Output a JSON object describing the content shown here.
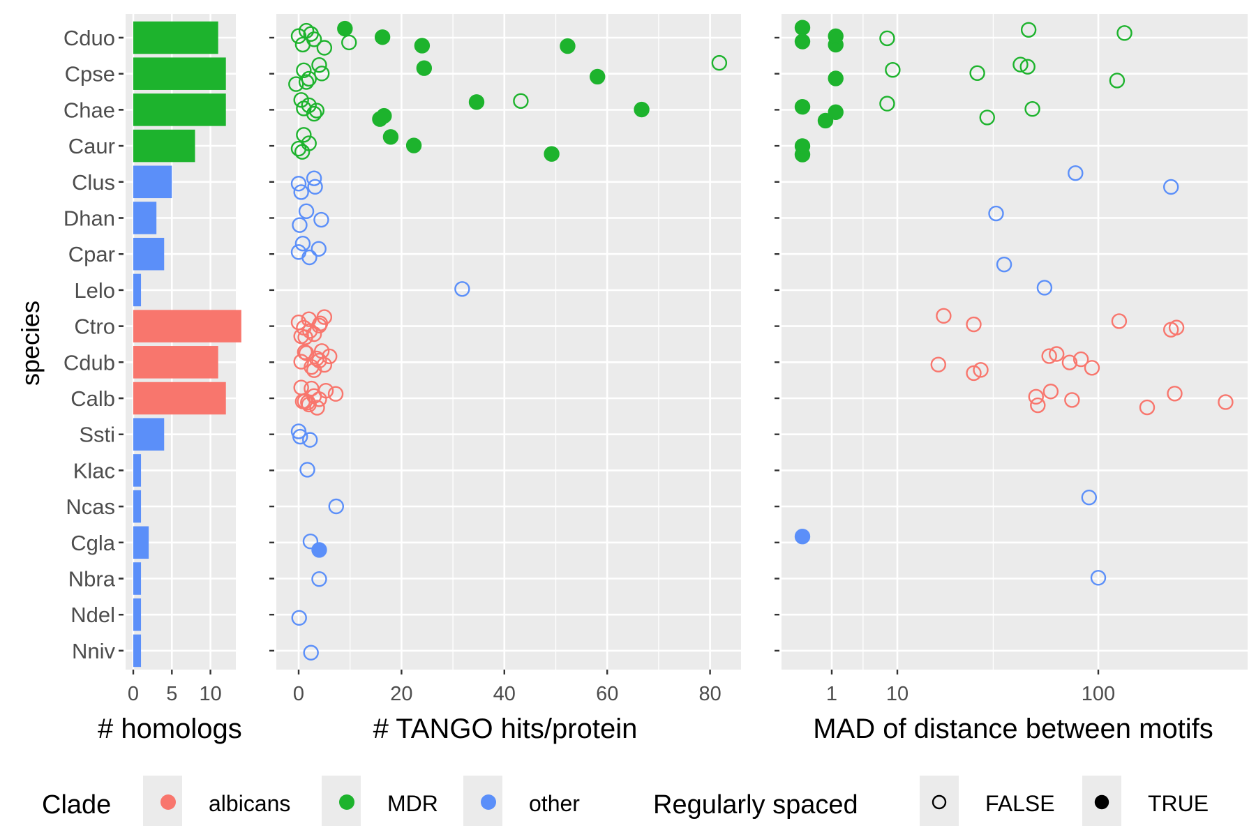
{
  "chart_data": [
    {
      "type": "bar",
      "orientation": "horizontal",
      "ylabel": "species",
      "xlabel": "# homologs",
      "xlim": [
        0,
        14
      ],
      "xticks": [
        0,
        5,
        10
      ],
      "categories": [
        "Cduo",
        "Cpse",
        "Chae",
        "Caur",
        "Clus",
        "Dhan",
        "Cpar",
        "Lelo",
        "Ctro",
        "Cdub",
        "Calb",
        "Ssti",
        "Klac",
        "Ncas",
        "Cgla",
        "Nbra",
        "Ndel",
        "Nniv"
      ],
      "clade": [
        "MDR",
        "MDR",
        "MDR",
        "MDR",
        "other",
        "other",
        "other",
        "other",
        "albicans",
        "albicans",
        "albicans",
        "other",
        "other",
        "other",
        "other",
        "other",
        "other",
        "other"
      ],
      "values": [
        11,
        12,
        12,
        8,
        5,
        3,
        4,
        1,
        14,
        11,
        12,
        4,
        1,
        1,
        2,
        1,
        1,
        1
      ],
      "grid": true
    },
    {
      "type": "scatter",
      "xlabel": "# TANGO hits/protein",
      "xlim": [
        -4,
        86
      ],
      "xticks": [
        0,
        20,
        40,
        60,
        80
      ],
      "points": {
        "Cduo": [
          [
            0,
            false
          ],
          [
            0.8,
            false
          ],
          [
            1.5,
            false
          ],
          [
            3,
            false
          ],
          [
            5,
            false
          ],
          [
            2.4,
            false
          ],
          [
            9.8,
            false
          ],
          [
            9,
            true
          ],
          [
            16.3,
            true
          ],
          [
            24,
            true
          ],
          [
            52.3,
            true
          ]
        ],
        "Cpse": [
          [
            -0.5,
            false
          ],
          [
            1,
            false
          ],
          [
            2,
            false
          ],
          [
            4,
            false
          ],
          [
            4.5,
            false
          ],
          [
            1.5,
            false
          ],
          [
            24.4,
            true
          ],
          [
            58.1,
            true
          ],
          [
            81.8,
            false
          ]
        ],
        "Chae": [
          [
            0.5,
            false
          ],
          [
            1,
            false
          ],
          [
            2,
            false
          ],
          [
            3,
            false
          ],
          [
            3.5,
            false
          ],
          [
            15.8,
            true
          ],
          [
            16.6,
            true
          ],
          [
            34.6,
            true
          ],
          [
            43.2,
            false
          ],
          [
            66.7,
            true
          ]
        ],
        "Caur": [
          [
            0,
            false
          ],
          [
            1,
            false
          ],
          [
            2,
            false
          ],
          [
            0.7,
            false
          ],
          [
            17.9,
            true
          ],
          [
            22.4,
            true
          ],
          [
            49.2,
            true
          ]
        ],
        "Clus": [
          [
            0,
            false
          ],
          [
            0.5,
            false
          ],
          [
            3,
            false
          ],
          [
            3.2,
            false
          ]
        ],
        "Dhan": [
          [
            0.2,
            false
          ],
          [
            1.5,
            false
          ],
          [
            4.4,
            false
          ]
        ],
        "Cpar": [
          [
            0,
            false
          ],
          [
            0.8,
            false
          ],
          [
            2.1,
            false
          ],
          [
            3.9,
            false
          ]
        ],
        "Lelo": [
          [
            31.8,
            false
          ]
        ],
        "Ctro": [
          [
            0,
            false
          ],
          [
            0.5,
            false
          ],
          [
            1,
            false
          ],
          [
            2,
            false
          ],
          [
            3,
            false
          ],
          [
            4,
            false
          ],
          [
            5,
            false
          ],
          [
            2.2,
            false
          ],
          [
            4.2,
            false
          ],
          [
            1.3,
            false
          ]
        ],
        "Cdub": [
          [
            0.5,
            false
          ],
          [
            1.5,
            false
          ],
          [
            2.5,
            false
          ],
          [
            3.5,
            false
          ],
          [
            4.5,
            false
          ],
          [
            5,
            false
          ],
          [
            6,
            false
          ],
          [
            3,
            false
          ],
          [
            4,
            false
          ],
          [
            1.2,
            false
          ]
        ],
        "Calb": [
          [
            0.5,
            false
          ],
          [
            1.2,
            false
          ],
          [
            2,
            false
          ],
          [
            3,
            false
          ],
          [
            4,
            false
          ],
          [
            5.3,
            false
          ],
          [
            7.2,
            false
          ],
          [
            3.6,
            false
          ],
          [
            2.5,
            false
          ],
          [
            1.8,
            false
          ],
          [
            0.8,
            false
          ]
        ],
        "Ssti": [
          [
            0,
            false
          ],
          [
            2.2,
            false
          ],
          [
            0.3,
            false
          ]
        ],
        "Klac": [
          [
            1.7,
            false
          ]
        ],
        "Ncas": [
          [
            7.3,
            false
          ]
        ],
        "Cgla": [
          [
            2.3,
            false
          ],
          [
            4,
            true
          ]
        ],
        "Nbra": [
          [
            4,
            false
          ]
        ],
        "Ndel": [
          [
            0.1,
            false
          ]
        ],
        "Nniv": [
          [
            2.4,
            false
          ]
        ]
      },
      "grid": true
    },
    {
      "type": "scatter",
      "xlabel": "MAD of distance between motifs",
      "xscale": "log",
      "xlim": [
        0.17,
        450
      ],
      "xticks": [
        1,
        10,
        100
      ],
      "points": {
        "Cduo": [
          [
            0.3,
            true
          ],
          [
            0.3,
            true
          ],
          [
            1.15,
            true
          ],
          [
            1.15,
            true
          ],
          [
            7,
            false
          ],
          [
            45,
            false
          ],
          [
            135,
            false
          ]
        ],
        "Cpse": [
          [
            1.15,
            true
          ],
          [
            8.5,
            false
          ],
          [
            25,
            false
          ],
          [
            41,
            false
          ],
          [
            44.5,
            false
          ],
          [
            124,
            false
          ]
        ],
        "Chae": [
          [
            0.3,
            true
          ],
          [
            0.85,
            true
          ],
          [
            1.15,
            true
          ],
          [
            7,
            false
          ],
          [
            28,
            false
          ],
          [
            47,
            false
          ]
        ],
        "Caur": [
          [
            0.3,
            true
          ],
          [
            0.3,
            true
          ]
        ],
        "Clus": [
          [
            77,
            false
          ],
          [
            230,
            false
          ]
        ],
        "Dhan": [
          [
            31,
            false
          ]
        ],
        "Cpar": [
          [
            34,
            false
          ]
        ],
        "Lelo": [
          [
            54,
            false
          ]
        ],
        "Ctro": [
          [
            17,
            false
          ],
          [
            24,
            false
          ],
          [
            127,
            false
          ],
          [
            230,
            false
          ],
          [
            245,
            false
          ]
        ],
        "Cdub": [
          [
            16,
            false
          ],
          [
            24,
            false
          ],
          [
            26,
            false
          ],
          [
            57,
            false
          ],
          [
            62,
            false
          ],
          [
            72,
            false
          ],
          [
            82,
            false
          ],
          [
            93,
            false
          ]
        ],
        "Calb": [
          [
            49,
            false
          ],
          [
            50,
            false
          ],
          [
            58,
            false
          ],
          [
            74,
            false
          ],
          [
            175,
            false
          ],
          [
            240,
            false
          ],
          [
            430,
            false
          ]
        ],
        "Ssti": [],
        "Klac": [],
        "Ncas": [
          [
            90,
            false
          ]
        ],
        "Cgla": [
          [
            0.3,
            true
          ]
        ],
        "Nbra": [
          [
            100,
            false
          ]
        ],
        "Ndel": [],
        "Nniv": []
      },
      "grid": true
    }
  ],
  "legend": {
    "clade_title": "Clade",
    "clade_items": [
      {
        "label": "albicans",
        "color": "#F8766D"
      },
      {
        "label": "MDR",
        "color": "#1DB32D"
      },
      {
        "label": "other",
        "color": "#5B8FF9"
      }
    ],
    "spacing_title": "Regularly spaced",
    "spacing_items": [
      {
        "label": "FALSE",
        "filled": false
      },
      {
        "label": "TRUE",
        "filled": true
      }
    ],
    "placement": "bottom"
  },
  "colors": {
    "albicans": "#F8766D",
    "MDR": "#1DB32D",
    "other": "#5B8FF9",
    "panel_bg": "#EBEBEB",
    "grid": "#FFFFFF"
  }
}
